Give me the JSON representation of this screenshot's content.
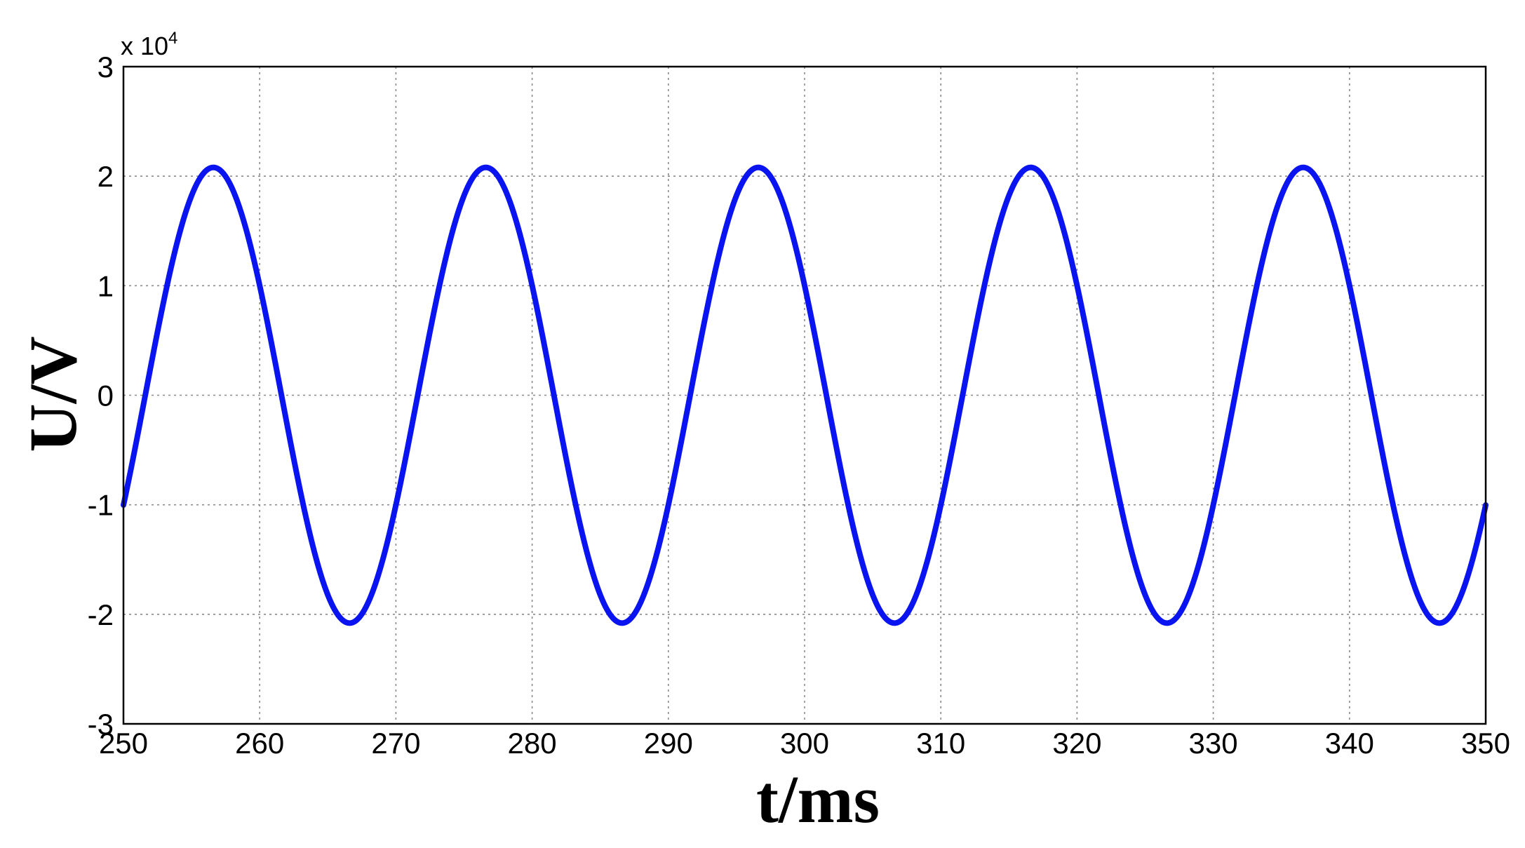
{
  "chart_data": {
    "type": "line",
    "xlabel": "t/ms",
    "ylabel": "U/V",
    "y_multiplier_text": "x 10",
    "y_multiplier_exp": "4",
    "xlim": [
      250,
      350
    ],
    "ylim": [
      -3,
      3
    ],
    "x_ticks": [
      "250",
      "260",
      "270",
      "280",
      "290",
      "300",
      "310",
      "320",
      "330",
      "340",
      "350"
    ],
    "y_ticks": [
      "3",
      "2",
      "1",
      "0",
      "-1",
      "-2",
      "-3"
    ],
    "grid": true,
    "series": [
      {
        "color": "#0a14f0",
        "amplitude": 2.08,
        "period_ms": 20,
        "zero_crossing_rising_ms": 251.6,
        "x": [
          250,
          251.6,
          256.6,
          261.6,
          266.6,
          271.6,
          276.6,
          281.6,
          286.6,
          291.6,
          296.6,
          301.6,
          306.6,
          311.6,
          316.6,
          321.6,
          326.6,
          331.6,
          336.6,
          341.6,
          346.6,
          350
        ],
        "y": [
          -0.75,
          0,
          2.08,
          0,
          -2.08,
          0,
          2.08,
          0,
          -2.08,
          0,
          2.08,
          0,
          -2.08,
          0,
          2.08,
          0,
          -2.08,
          0,
          2.08,
          0,
          -2.08,
          -0.75
        ]
      }
    ]
  }
}
